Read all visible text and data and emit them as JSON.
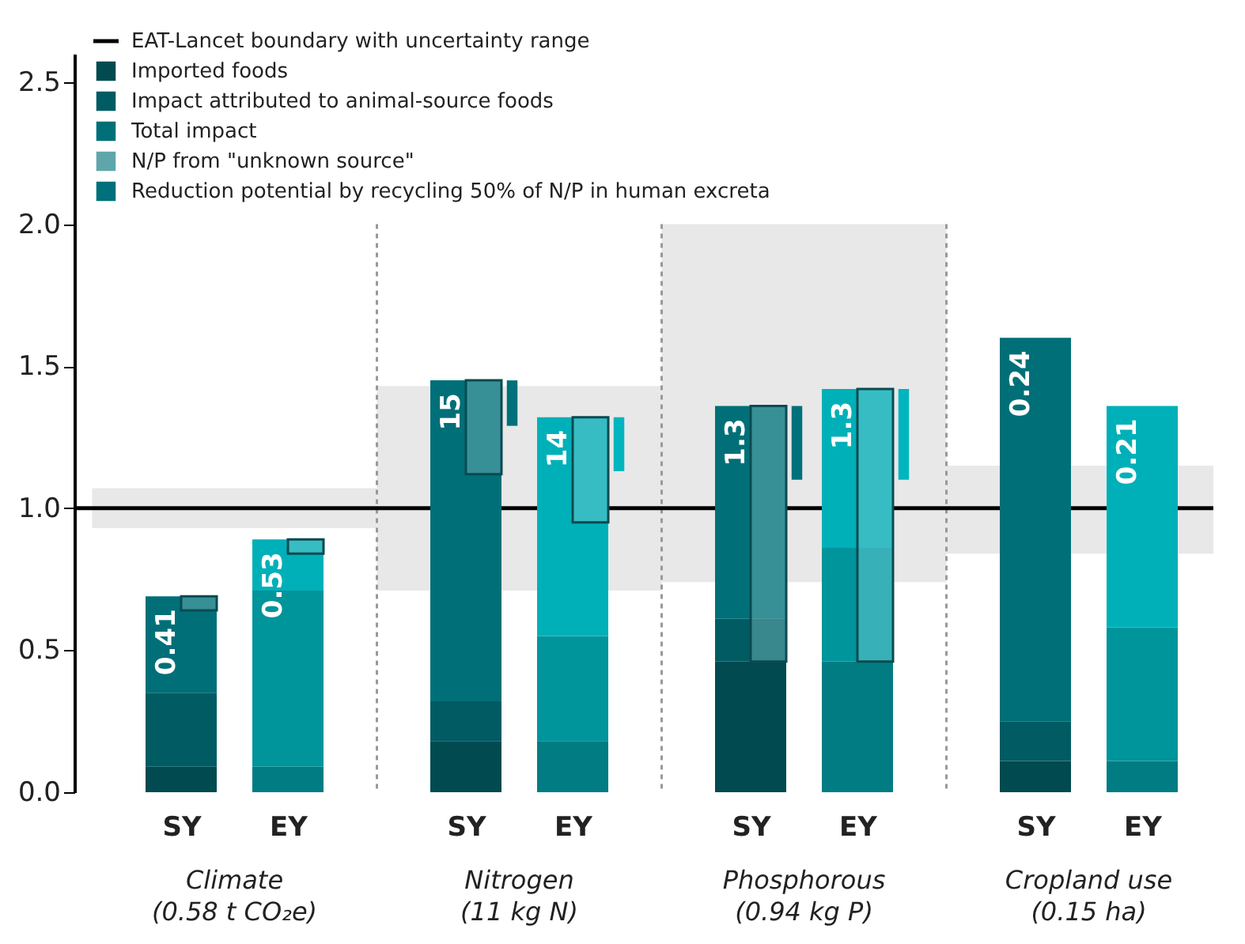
{
  "chart_data": {
    "type": "bar",
    "categories": [
      "SY",
      "EY",
      "SY",
      "EY",
      "SY",
      "EY",
      "SY",
      "EY"
    ],
    "ylim": [
      0,
      2.6
    ],
    "yticks": [
      {
        "value": 0,
        "label": "0.0"
      },
      0.5,
      {
        "value": 1,
        "label": "1.0"
      },
      1.5,
      {
        "value": 2,
        "label": "2.0"
      },
      2.5
    ],
    "grid": false,
    "legend": "top left",
    "series": [
      {
        "name": "Imported foods",
        "colors": [
          "#004a50",
          "#007c82",
          "#004a50",
          "#007c82",
          "#004a50",
          "#007c82",
          "#004a50",
          "#007c82"
        ],
        "base": [
          0,
          0,
          0,
          0,
          0,
          0,
          0,
          0
        ],
        "values": [
          0.09,
          0.09,
          0.18,
          0.18,
          0.46,
          0.46,
          0.11,
          0.11
        ]
      },
      {
        "name": "Impact attributed to animal-source foods",
        "colors": [
          "#005b63",
          "#00949b",
          "#005b63",
          "#00949b",
          "#005b63",
          "#00949b",
          "#005b63",
          "#00949b"
        ],
        "base": [
          0.09,
          0.09,
          0.18,
          0.18,
          0.46,
          0.46,
          0.11,
          0.11
        ],
        "values": [
          0.26,
          0.62,
          0.14,
          0.37,
          0.15,
          0.4,
          0.14,
          0.47
        ]
      },
      {
        "name": "Total impact",
        "colors": [
          "#006f78",
          "#00b0b8",
          "#006f78",
          "#00b0b8",
          "#006f78",
          "#00b0b8",
          "#006f78",
          "#00b0b8"
        ],
        "base": [
          0.35,
          0.71,
          0.32,
          0.55,
          0.61,
          0.86,
          0.25,
          0.58
        ],
        "values": [
          0.34,
          0.18,
          1.13,
          0.77,
          0.75,
          0.56,
          1.35,
          0.78
        ]
      },
      {
        "name": "N/P from \"unknown source\"",
        "type": "bar",
        "colors": [
          "#5ea6ab",
          "#5cc4ca",
          "#5ea6ab",
          "#5cc4ca",
          "#5ea6ab",
          "#5cc4ca",
          null,
          null
        ],
        "base": [
          0.64,
          0.84,
          1.12,
          0.95,
          0.46,
          0.46,
          null,
          null
        ],
        "values": [
          0.05,
          0.05,
          0.33,
          0.37,
          0.9,
          0.96,
          null,
          null
        ]
      },
      {
        "name": "Reduction potential by recycling 50% of N/P in human excreta",
        "type": "bar",
        "colors": [
          null,
          null,
          "#00707a",
          "#00b5bd",
          "#00707a",
          "#00b5bd",
          null,
          null
        ],
        "base": [
          null,
          null,
          1.45,
          1.32,
          1.36,
          1.42,
          null,
          null
        ],
        "values": [
          null,
          null,
          -0.16,
          -0.19,
          -0.26,
          -0.32,
          null,
          null
        ]
      }
    ],
    "ref_lines": [
      {
        "axis": "y",
        "value": 1.0,
        "label": "EAT-Lancet boundary with uncertainty range",
        "color": "#000000"
      }
    ],
    "bands": [
      {
        "axis": "y",
        "from": 0.93,
        "to": 1.07,
        "color": "#e8e8e8"
      },
      {
        "axis": "y",
        "from": 0.71,
        "to": 1.43,
        "color": "#e8e8e8"
      },
      {
        "axis": "y",
        "from": 0.74,
        "to": 2.0,
        "color": "#e8e8e8"
      },
      {
        "axis": "y",
        "from": 0.84,
        "to": 1.15,
        "color": "#e8e8e8"
      }
    ],
    "annotations": [
      "Climate\n(0.58 t CO₂e)",
      "Nitrogen\n(11 kg N)",
      "Phosphorous\n(0.94 kg P)",
      "Cropland use\n(0.15 ha)",
      "0.41",
      "0.53",
      "15",
      "14",
      "1.3",
      "1.3",
      "0.24",
      "0.21"
    ]
  }
}
